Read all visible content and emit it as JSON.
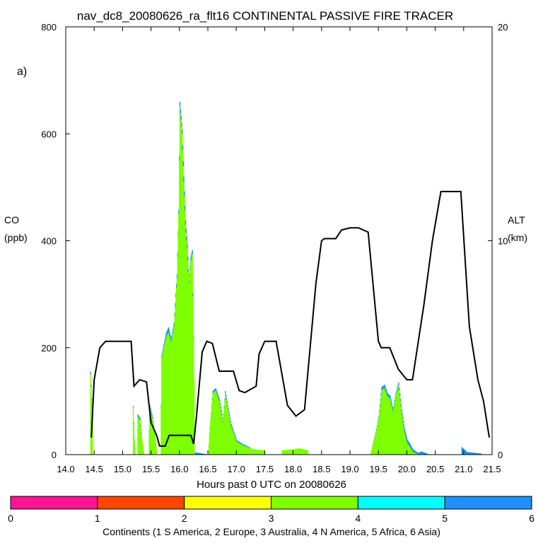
{
  "chart_data": {
    "type": "area",
    "title": "nav_dc8_20080626_ra_flt16 CONTINENTAL PASSIVE FIRE TRACER",
    "panel_label": "a)",
    "xlabel": "Hours past 0 UTC on 20080626",
    "ylabel_left": [
      "CO",
      "(ppb)"
    ],
    "ylabel_right": [
      "ALT",
      "(km)"
    ],
    "xlim": [
      14.0,
      21.5
    ],
    "ylim_left": [
      0,
      800
    ],
    "ylim_right": [
      0,
      20
    ],
    "x_ticks": [
      "14.0",
      "14.5",
      "15.0",
      "15.5",
      "16.0",
      "16.5",
      "17.0",
      "17.5",
      "18.0",
      "18.5",
      "19.0",
      "19.5",
      "20.0",
      "20.5",
      "21.0",
      "21.5"
    ],
    "y_ticks_left": [
      "0",
      "200",
      "400",
      "600",
      "800"
    ],
    "y_ticks_right": [
      "0",
      "10",
      "20"
    ],
    "colors": {
      "na": "#7fff00",
      "asia": "#1e90ff",
      "alt": "#000000"
    },
    "co_series": [
      {
        "name": "N America",
        "color": "#7fff00"
      },
      {
        "name": "Asia",
        "color": "#1e90ff"
      }
    ],
    "co_points": [
      [
        14.42,
        0,
        0
      ],
      [
        14.43,
        150,
        5
      ],
      [
        14.46,
        80,
        0
      ],
      [
        14.47,
        0,
        0
      ],
      [
        15.17,
        0,
        0
      ],
      [
        15.18,
        88,
        3
      ],
      [
        15.2,
        30,
        0
      ],
      [
        15.22,
        0,
        0
      ],
      [
        15.25,
        0,
        0
      ],
      [
        15.26,
        72,
        3
      ],
      [
        15.3,
        65,
        3
      ],
      [
        15.33,
        30,
        0
      ],
      [
        15.37,
        0,
        0
      ],
      [
        15.45,
        0,
        0
      ],
      [
        15.47,
        90,
        3
      ],
      [
        15.52,
        68,
        3
      ],
      [
        15.57,
        30,
        0
      ],
      [
        15.6,
        0,
        0
      ],
      [
        15.66,
        0,
        0
      ],
      [
        15.68,
        180,
        5
      ],
      [
        15.72,
        200,
        6
      ],
      [
        15.76,
        220,
        8
      ],
      [
        15.8,
        230,
        8
      ],
      [
        15.85,
        210,
        6
      ],
      [
        15.9,
        240,
        8
      ],
      [
        15.95,
        330,
        8
      ],
      [
        15.98,
        450,
        8
      ],
      [
        16.0,
        650,
        10
      ],
      [
        16.04,
        600,
        8
      ],
      [
        16.07,
        510,
        10
      ],
      [
        16.1,
        430,
        8
      ],
      [
        16.13,
        385,
        8
      ],
      [
        16.16,
        320,
        5
      ],
      [
        16.19,
        360,
        8
      ],
      [
        16.22,
        375,
        8
      ],
      [
        16.25,
        140,
        0
      ],
      [
        16.26,
        0,
        0
      ],
      [
        16.27,
        0,
        4
      ],
      [
        16.35,
        0,
        3
      ],
      [
        16.5,
        0,
        0
      ],
      [
        16.52,
        40,
        0
      ],
      [
        16.58,
        115,
        4
      ],
      [
        16.63,
        120,
        4
      ],
      [
        16.7,
        100,
        3
      ],
      [
        16.76,
        60,
        3
      ],
      [
        16.8,
        115,
        4
      ],
      [
        16.84,
        90,
        3
      ],
      [
        16.9,
        55,
        3
      ],
      [
        17.0,
        25,
        2
      ],
      [
        17.1,
        18,
        2
      ],
      [
        17.3,
        10,
        0
      ],
      [
        17.5,
        8,
        0
      ],
      [
        17.8,
        8,
        0
      ],
      [
        18.0,
        10,
        0
      ],
      [
        18.1,
        12,
        0
      ],
      [
        18.25,
        8,
        0
      ],
      [
        18.26,
        0,
        0
      ],
      [
        19.35,
        0,
        0
      ],
      [
        19.45,
        40,
        3
      ],
      [
        19.5,
        70,
        3
      ],
      [
        19.55,
        120,
        6
      ],
      [
        19.6,
        125,
        6
      ],
      [
        19.65,
        110,
        5
      ],
      [
        19.7,
        105,
        5
      ],
      [
        19.75,
        80,
        4
      ],
      [
        19.8,
        110,
        5
      ],
      [
        19.85,
        130,
        5
      ],
      [
        19.9,
        80,
        4
      ],
      [
        19.95,
        45,
        5
      ],
      [
        20.0,
        22,
        6
      ],
      [
        20.05,
        15,
        5
      ],
      [
        20.1,
        5,
        5
      ],
      [
        20.15,
        3,
        3
      ],
      [
        20.2,
        0,
        3
      ],
      [
        20.25,
        0,
        6
      ],
      [
        20.35,
        0,
        2
      ],
      [
        20.36,
        0,
        0
      ],
      [
        20.95,
        0,
        0
      ],
      [
        20.96,
        0,
        14
      ],
      [
        21.05,
        0,
        5
      ],
      [
        21.3,
        0,
        2
      ],
      [
        21.31,
        0,
        0
      ]
    ],
    "alt_points": [
      [
        14.45,
        0.8
      ],
      [
        14.5,
        3.5
      ],
      [
        14.6,
        5
      ],
      [
        14.7,
        5.3
      ],
      [
        14.85,
        5.3
      ],
      [
        15.15,
        5.3
      ],
      [
        15.2,
        3.2
      ],
      [
        15.3,
        3.5
      ],
      [
        15.42,
        3.4
      ],
      [
        15.5,
        1.5
      ],
      [
        15.6,
        0.9
      ],
      [
        15.65,
        0.4
      ],
      [
        15.75,
        0.4
      ],
      [
        15.82,
        0.9
      ],
      [
        16.12,
        0.9
      ],
      [
        16.2,
        0.9
      ],
      [
        16.25,
        0.5
      ],
      [
        16.3,
        1.8
      ],
      [
        16.4,
        4.8
      ],
      [
        16.48,
        5.3
      ],
      [
        16.58,
        5.2
      ],
      [
        16.7,
        3.9
      ],
      [
        16.95,
        3.9
      ],
      [
        17.05,
        3
      ],
      [
        17.15,
        2.9
      ],
      [
        17.35,
        3.2
      ],
      [
        17.4,
        4.7
      ],
      [
        17.5,
        5.3
      ],
      [
        17.7,
        5.3
      ],
      [
        17.9,
        2.3
      ],
      [
        18.05,
        1.8
      ],
      [
        18.2,
        2.1
      ],
      [
        18.4,
        8
      ],
      [
        18.5,
        10
      ],
      [
        18.55,
        10.1
      ],
      [
        18.75,
        10.1
      ],
      [
        18.85,
        10.5
      ],
      [
        19.0,
        10.6
      ],
      [
        19.15,
        10.6
      ],
      [
        19.32,
        10.4
      ],
      [
        19.5,
        5.3
      ],
      [
        19.55,
        5
      ],
      [
        19.7,
        5
      ],
      [
        19.85,
        4
      ],
      [
        20.0,
        3.5
      ],
      [
        20.1,
        3.5
      ],
      [
        20.3,
        7
      ],
      [
        20.45,
        10
      ],
      [
        20.6,
        12.3
      ],
      [
        20.75,
        12.3
      ],
      [
        20.95,
        12.3
      ],
      [
        21.1,
        6
      ],
      [
        21.25,
        3.5
      ],
      [
        21.35,
        2.5
      ],
      [
        21.45,
        0.8
      ]
    ],
    "colorbar": {
      "label": "Continents (1 S America, 2 Europe, 3 Australia, 4 N America, 5 Africa, 6 Asia)",
      "ticks": [
        "0",
        "1",
        "2",
        "3",
        "4",
        "5",
        "6"
      ],
      "colors": [
        "#ff1493",
        "#ff4500",
        "#ffff00",
        "#7fff00",
        "#00ffff",
        "#1e90ff"
      ]
    }
  }
}
